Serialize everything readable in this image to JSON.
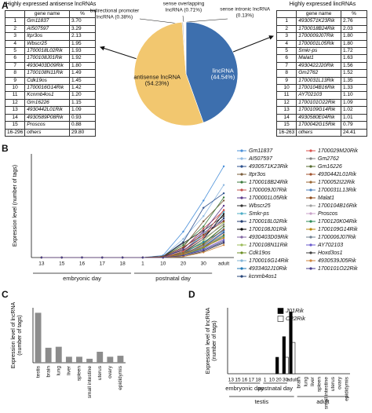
{
  "panel_labels": [
    "A",
    "B",
    "C",
    "D"
  ],
  "tables": [
    {
      "title": "Highly expressed antisense lncRNAs",
      "header": [
        "gene name",
        "%"
      ],
      "rows": [
        [
          "1",
          "Gm11837",
          "3.70"
        ],
        [
          "2",
          "AI507597",
          "3.29"
        ],
        [
          "3",
          "Itpr3os",
          "2.13"
        ],
        [
          "4",
          "Wbscr25",
          "1.95"
        ],
        [
          "5",
          "1700018L02Rik",
          "1.93"
        ],
        [
          "6",
          "1700108J01Rik",
          "1.92"
        ],
        [
          "7",
          "4930403D09Rik",
          "1.80"
        ],
        [
          "8",
          "1700108N11Rik",
          "1.49"
        ],
        [
          "9",
          "Cdk19os",
          "1.45"
        ],
        [
          "10",
          "1700016G14Rik",
          "1.42"
        ],
        [
          "11",
          "Kcnmb4os1",
          "1.20"
        ],
        [
          "12",
          "Gm16226",
          "1.15"
        ],
        [
          "13",
          "4930442L01Rik",
          "1.09"
        ],
        [
          "14",
          "4930589P08Rik",
          "0.93"
        ],
        [
          "15",
          "Proscos",
          "0.88"
        ],
        [
          "16-296",
          "others",
          "29.80"
        ]
      ]
    },
    {
      "title": "Highly expressed lincRNAs",
      "header": [
        "gene name",
        "%"
      ],
      "rows": [
        [
          "1",
          "4930571K23Rik",
          "2.76"
        ],
        [
          "2",
          "1700018B24Rik",
          "2.03"
        ],
        [
          "3",
          "1700009J07Rik",
          "1.80"
        ],
        [
          "4",
          "1700001L05Rik",
          "1.80"
        ],
        [
          "5",
          "Smkr-ps",
          "1.72"
        ],
        [
          "6",
          "Malat1",
          "1.63"
        ],
        [
          "7",
          "4930422J20Rik",
          "1.56"
        ],
        [
          "8",
          "Gm2762",
          "1.52"
        ],
        [
          "9",
          "1700031L13Rik",
          "1.35"
        ],
        [
          "10",
          "1700104B16Rik",
          "1.33"
        ],
        [
          "11",
          "AY702103",
          "1.10"
        ],
        [
          "12",
          "1700101O22Rik",
          "1.09"
        ],
        [
          "13",
          "1700109G14Rik",
          "1.02"
        ],
        [
          "14",
          "4930580E04Rik",
          "1.01"
        ],
        [
          "15",
          "1700042G15Rik",
          "0.79"
        ],
        [
          "16-263",
          "others",
          "24.41"
        ]
      ]
    }
  ],
  "chart_data": [
    {
      "type": "pie",
      "categories": [
        "lincRNA",
        "antisense lncRNA",
        "bidirectional promoter lncRNA",
        "sense overlapping lncRNA",
        "sense intronic lncRNA"
      ],
      "values": [
        44.54,
        54.23,
        0.38,
        0.71,
        0.13
      ],
      "value_labels": [
        "(44.54%)",
        "(54.23%)",
        "(0.38%)",
        "(0.71%)",
        "(0.13%)"
      ],
      "colors": [
        "#3d6fae",
        "#f2c76f",
        "#bbbbbb",
        "#ffffff",
        "#555555"
      ]
    },
    {
      "type": "line",
      "y_label": "Expression level (number of tags)",
      "categories": [
        "13",
        "15",
        "16",
        "17",
        "18",
        "1",
        "10",
        "20",
        "30",
        "adult"
      ],
      "x_groups": [
        [
          {
            "label": "embryonic day",
            "span": [
              0,
              4
            ]
          },
          {
            "label": "postnatal day",
            "span": [
              5,
              8
            ]
          }
        ]
      ],
      "ylim": [
        0,
        100
      ],
      "series": [
        {
          "name": "Gm11837",
          "color": "#4a90d9",
          "values": [
            0,
            0,
            0,
            0,
            0,
            0,
            2,
            25,
            55,
            88
          ]
        },
        {
          "name": "AI507597",
          "color": "#8fb8e0",
          "values": [
            0,
            0,
            0,
            0,
            0,
            0,
            1,
            18,
            40,
            70
          ]
        },
        {
          "name": "4930571K23Rik",
          "color": "#2b4f8c",
          "values": [
            0,
            0,
            0,
            0,
            0,
            0,
            1,
            15,
            48,
            62
          ]
        },
        {
          "name": "Itpr3os",
          "color": "#7a5c3a",
          "values": [
            0,
            0,
            0,
            0,
            0,
            0,
            1,
            10,
            35,
            55
          ]
        },
        {
          "name": "1700018B24Rik",
          "color": "#3c7a3c",
          "values": [
            0,
            0,
            0,
            0,
            0,
            0,
            1,
            12,
            30,
            58
          ]
        },
        {
          "name": "1700009J07Rik",
          "color": "#c0504d",
          "values": [
            0,
            0,
            0,
            0,
            0,
            0,
            0,
            8,
            28,
            45
          ]
        },
        {
          "name": "1700001L05Rik",
          "color": "#5b3a8c",
          "values": [
            0,
            0,
            0,
            0,
            0,
            0,
            0,
            9,
            25,
            50
          ]
        },
        {
          "name": "Wbscr25",
          "color": "#333333",
          "values": [
            0,
            0,
            0,
            0,
            0,
            0,
            1,
            14,
            26,
            40
          ]
        },
        {
          "name": "Smkr-ps",
          "color": "#4bacc6",
          "values": [
            0,
            0,
            0,
            0,
            0,
            0,
            0,
            6,
            22,
            44
          ]
        },
        {
          "name": "1700018L02Rik",
          "color": "#1f3a6e",
          "values": [
            0,
            0,
            0,
            0,
            0,
            0,
            1,
            7,
            20,
            38
          ]
        },
        {
          "name": "1700108J01Rik",
          "color": "#000000",
          "values": [
            0,
            0,
            0,
            0,
            0,
            0,
            0,
            5,
            18,
            42
          ]
        },
        {
          "name": "4930403D09Rik",
          "color": "#8064a2",
          "values": [
            0,
            0,
            0,
            0,
            0,
            0,
            0,
            6,
            24,
            36
          ]
        },
        {
          "name": "1700108N11Rik",
          "color": "#9bbb59",
          "values": [
            0,
            0,
            0,
            0,
            0,
            0,
            0,
            4,
            16,
            34
          ]
        },
        {
          "name": "Cdk19os",
          "color": "#6b8e23",
          "values": [
            0,
            0,
            0,
            0,
            0,
            0,
            0,
            5,
            14,
            30
          ]
        },
        {
          "name": "1700016G14Rik",
          "color": "#7fb3d5",
          "values": [
            0,
            0,
            0,
            0,
            0,
            0,
            0,
            3,
            12,
            28
          ]
        },
        {
          "name": "4933402J10Rik",
          "color": "#1f77b4",
          "values": [
            0,
            0,
            0,
            0,
            0,
            0,
            0,
            4,
            15,
            26
          ]
        },
        {
          "name": "kcnmb4os1",
          "color": "#264478",
          "values": [
            0,
            0,
            0,
            0,
            0,
            0,
            0,
            3,
            10,
            24
          ]
        },
        {
          "name": "1700029M20Rik",
          "color": "#d9534f",
          "values": [
            0,
            0,
            0,
            0,
            0,
            0,
            0,
            6,
            20,
            46
          ]
        },
        {
          "name": "Gm2762",
          "color": "#7f7f7f",
          "values": [
            0,
            0,
            0,
            0,
            0,
            0,
            0,
            4,
            18,
            32
          ]
        },
        {
          "name": "Gm16226",
          "color": "#556b2f",
          "values": [
            0,
            0,
            0,
            0,
            0,
            0,
            0,
            3,
            13,
            30
          ]
        },
        {
          "name": "4930442L01Rik",
          "color": "#a0522d",
          "values": [
            0,
            0,
            0,
            0,
            0,
            0,
            0,
            4,
            12,
            27
          ]
        },
        {
          "name": "1700052I22Rik",
          "color": "#996633",
          "values": [
            0,
            0,
            0,
            0,
            0,
            0,
            0,
            2,
            10,
            22
          ]
        },
        {
          "name": "1700031L13Rik",
          "color": "#4f81bd",
          "values": [
            0,
            0,
            0,
            0,
            0,
            0,
            0,
            3,
            11,
            25
          ]
        },
        {
          "name": "Malat1",
          "color": "#8b4513",
          "values": [
            0,
            0,
            0,
            0,
            0,
            0,
            1,
            10,
            22,
            35
          ]
        },
        {
          "name": "1700104B16Rik",
          "color": "#9e9e9e",
          "values": [
            0,
            0,
            0,
            0,
            0,
            0,
            0,
            3,
            9,
            20
          ]
        },
        {
          "name": "Proscos",
          "color": "#c8a2c8",
          "values": [
            0,
            0,
            0,
            0,
            0,
            0,
            0,
            2,
            8,
            18
          ]
        },
        {
          "name": "1700120K04Rik",
          "color": "#2e8b57",
          "values": [
            0,
            0,
            0,
            0,
            0,
            0,
            0,
            2,
            9,
            21
          ]
        },
        {
          "name": "1700109G14Rik",
          "color": "#b8860b",
          "values": [
            0,
            0,
            0,
            0,
            0,
            0,
            0,
            3,
            10,
            19
          ]
        },
        {
          "name": "1700006J07Rik",
          "color": "#708090",
          "values": [
            0,
            0,
            0,
            0,
            0,
            0,
            0,
            2,
            7,
            16
          ]
        },
        {
          "name": "AY702103",
          "color": "#6a5acd",
          "values": [
            0,
            0,
            0,
            0,
            0,
            0,
            0,
            2,
            8,
            17
          ]
        },
        {
          "name": "Hoxd3os1",
          "color": "#3d3d3d",
          "values": [
            0,
            0,
            0,
            0,
            0,
            0,
            0,
            1,
            6,
            14
          ]
        },
        {
          "name": "4930539J05Rik",
          "color": "#cd853f",
          "values": [
            0,
            0,
            0,
            0,
            0,
            0,
            0,
            1,
            5,
            12
          ]
        },
        {
          "name": "1700101O22Rik",
          "color": "#483d8b",
          "values": [
            0,
            0,
            0,
            0,
            0,
            0,
            0,
            2,
            7,
            15
          ]
        }
      ]
    },
    {
      "type": "bar",
      "y_label": "Expression level of lncRNA (number of tags)",
      "categories": [
        "testis",
        "brain",
        "lung",
        "liver",
        "spleen",
        "small intestine",
        "uterus",
        "ovary",
        "epididymis"
      ],
      "values": [
        50,
        15,
        16,
        6,
        6,
        4,
        11,
        6,
        7
      ],
      "color": "#8c8c8c",
      "ylim": [
        0,
        55
      ]
    },
    {
      "type": "bar",
      "y_label": "Expression level of lncRNA (number of tags)",
      "categories": [
        "13",
        "15",
        "16",
        "17",
        "18",
        "1",
        "10",
        "20",
        "30",
        "adult",
        "brain",
        "lung",
        "liver",
        "spleen",
        "small intestine",
        "uterus",
        "ovary",
        "epididymis"
      ],
      "x_groups": [
        [
          {
            "label": "embryonic day",
            "span": [
              0,
              4
            ]
          },
          {
            "label": "postnatal day",
            "span": [
              5,
              8
            ]
          }
        ],
        [
          {
            "label": "testis",
            "span": [
              0,
              9
            ]
          },
          {
            "label": "adult",
            "span": [
              10,
              17
            ]
          }
        ]
      ],
      "ylim": [
        0,
        80
      ],
      "series": [
        {
          "name": "J01Rik",
          "color": "#000000",
          "values": [
            0,
            0,
            0,
            0,
            0,
            0,
            0,
            20,
            45,
            75,
            0,
            0,
            0,
            0,
            0,
            0,
            0,
            0
          ]
        },
        {
          "name": "O22Rik",
          "color": "#ffffff",
          "values": [
            0,
            0,
            0,
            0,
            0,
            0,
            0,
            0,
            20,
            38,
            0,
            0,
            0,
            0,
            0,
            0,
            0,
            0
          ]
        }
      ]
    }
  ]
}
